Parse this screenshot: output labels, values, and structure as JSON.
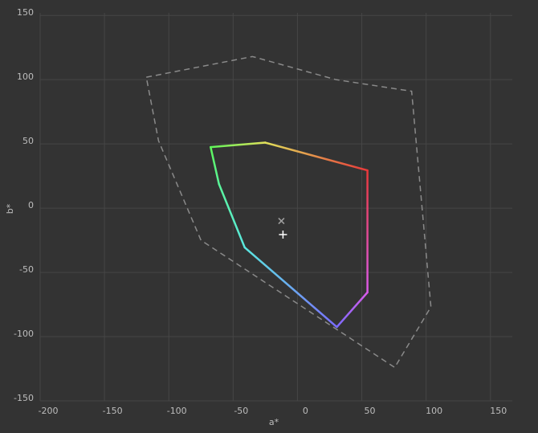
{
  "chart_data": {
    "type": "gamut",
    "xlabel": "a*",
    "ylabel": "b*",
    "xlim": [
      -200,
      167
    ],
    "ylim": [
      -150,
      152
    ],
    "xticks": [
      -200,
      -150,
      -100,
      -50,
      0,
      50,
      100,
      150
    ],
    "yticks": [
      -150,
      -100,
      -50,
      0,
      50,
      100,
      150
    ],
    "grid": true,
    "gamut": {
      "x": [
        -67.5,
        -25,
        54.4,
        54.4,
        30.6,
        -41,
        -61
      ],
      "y": [
        47.5,
        51,
        29.4,
        -65.6,
        -92.5,
        -30.6,
        18.75
      ],
      "colors": [
        "#5ef55a",
        "#e0e05a",
        "#e8383a",
        "#d85ae8",
        "#7a6cff",
        "#5ae8e0",
        "#5af59a"
      ]
    },
    "reference": {
      "x": [
        -117.5,
        -35,
        30,
        88.75,
        103.75,
        75.6,
        -75,
        -108
      ],
      "y": [
        101.9,
        118,
        100,
        91,
        -76.9,
        -124,
        -25,
        52.5
      ],
      "color": "#8a8a8a"
    },
    "markers": [
      {
        "x": -12.5,
        "y": -10,
        "symbol": "x",
        "color": "#a0a0a0"
      },
      {
        "x": -11.25,
        "y": -20.6,
        "symbol": "+",
        "color": "#ffffff"
      }
    ]
  }
}
